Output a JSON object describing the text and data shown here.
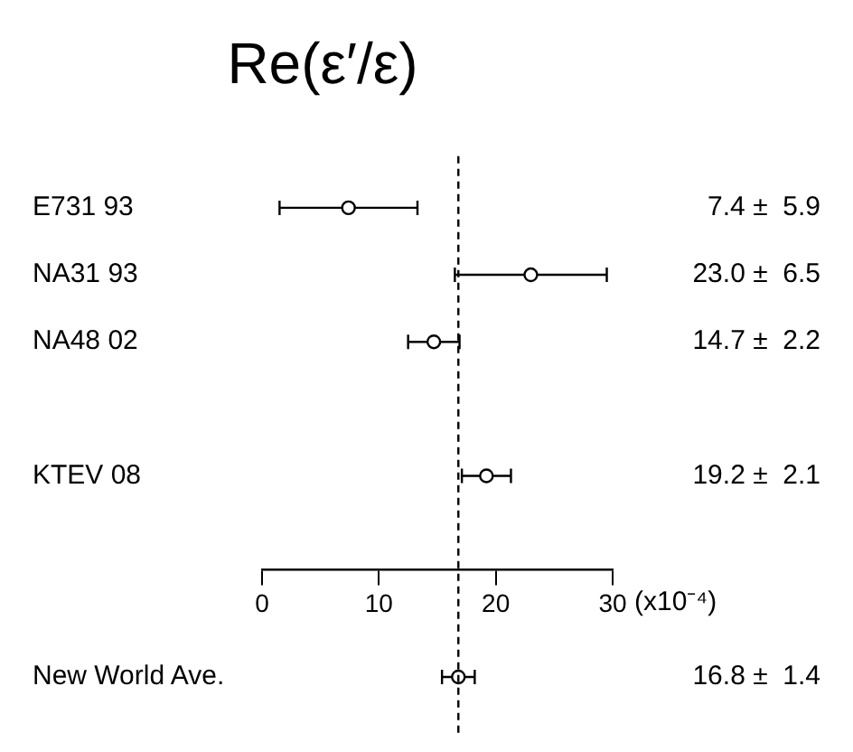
{
  "chart_data": {
    "type": "scatter",
    "title": "Re(ε′/ε)",
    "xlabel": "(x10⁻⁴)",
    "categories": [
      "E731 93",
      "NA31 93",
      "NA48 02",
      null,
      "KTEV 08",
      null,
      null,
      "New World Ave."
    ],
    "values": [
      7.4,
      23.0,
      14.7,
      null,
      19.2,
      null,
      null,
      16.8
    ],
    "errors": [
      5.9,
      6.5,
      2.2,
      null,
      2.1,
      null,
      null,
      1.4
    ],
    "value_labels": [
      "7.4 ±  5.9",
      "23.0 ±  6.5",
      "14.7 ±  2.2",
      null,
      "19.2 ±  2.1",
      null,
      null,
      "16.8 ±  1.4"
    ],
    "color": "#000000",
    "marker": "circle",
    "orientation": "horizontal",
    "xlim": [
      0,
      30
    ],
    "xticks": [
      0,
      10,
      20,
      30
    ],
    "ref_lines": [
      {
        "axis": "x",
        "value": 16.8,
        "line_style": "dashed",
        "color": "#000000"
      }
    ],
    "grid": false,
    "legend": false
  }
}
